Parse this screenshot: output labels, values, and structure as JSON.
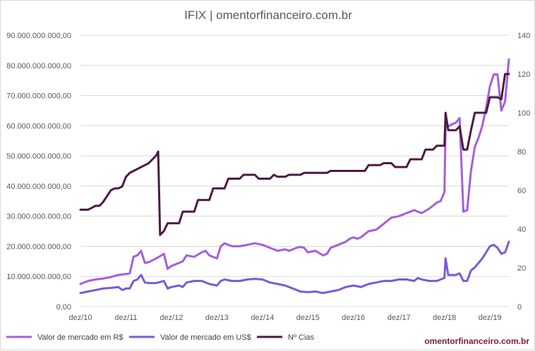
{
  "chart_data": {
    "type": "line",
    "title": "IFIX | omentorfinanceiro.com.br",
    "watermark": "omentorfinanceiro.com.br",
    "x_labels": [
      "dez/10",
      "dez/11",
      "dez/12",
      "dez/13",
      "dez/14",
      "dez/15",
      "dez/16",
      "dez/17",
      "dez/18",
      "dez/19"
    ],
    "y_left": {
      "min": 0,
      "max": 90000000000,
      "tick_labels": [
        "0,00",
        "10.000.000.000,00",
        "20.000.000.000,00",
        "30.000.000.000,00",
        "40.000.000.000,00",
        "50.000.000.000,00",
        "60.000.000.000,00",
        "70.000.000.000,00",
        "80.000.000.000,00",
        "90.000.000.000,00"
      ]
    },
    "y_right": {
      "min": 0,
      "max": 140,
      "tick_labels": [
        "0",
        "20",
        "40",
        "60",
        "80",
        "100",
        "120",
        "140"
      ]
    },
    "x_index": {
      "min": 0,
      "max": 113,
      "tick_interval": 12
    },
    "series": [
      {
        "name": "Valor de mercado em R$",
        "axis": "left",
        "color": "#a35fdb",
        "points": [
          [
            0,
            7.5
          ],
          [
            2,
            8.5
          ],
          [
            4,
            9.0
          ],
          [
            6,
            9.3
          ],
          [
            8,
            9.8
          ],
          [
            10,
            10.5
          ],
          [
            12,
            10.8
          ],
          [
            13,
            11.0
          ],
          [
            14,
            16.5
          ],
          [
            15,
            17.0
          ],
          [
            16,
            18.5
          ],
          [
            17,
            14.5
          ],
          [
            18,
            14.7
          ],
          [
            20,
            16.0
          ],
          [
            22,
            17.5
          ],
          [
            23,
            12.5
          ],
          [
            24,
            13.5
          ],
          [
            26,
            14.5
          ],
          [
            27,
            15.0
          ],
          [
            28,
            17.0
          ],
          [
            30,
            16.5
          ],
          [
            32,
            18.0
          ],
          [
            33,
            18.5
          ],
          [
            34,
            17.0
          ],
          [
            36,
            16.0
          ],
          [
            37,
            20.0
          ],
          [
            38,
            21.0
          ],
          [
            40,
            20.0
          ],
          [
            42,
            20.0
          ],
          [
            44,
            20.5
          ],
          [
            46,
            21.0
          ],
          [
            48,
            20.5
          ],
          [
            50,
            19.5
          ],
          [
            52,
            18.5
          ],
          [
            54,
            19.0
          ],
          [
            55,
            18.5
          ],
          [
            57,
            19.5
          ],
          [
            58,
            19.8
          ],
          [
            59,
            19.5
          ],
          [
            60,
            18.0
          ],
          [
            62,
            18.5
          ],
          [
            64,
            17.0
          ],
          [
            65,
            17.5
          ],
          [
            66,
            19.5
          ],
          [
            68,
            20.5
          ],
          [
            70,
            21.5
          ],
          [
            71,
            22.5
          ],
          [
            72,
            23.0
          ],
          [
            73,
            22.5
          ],
          [
            74,
            23.0
          ],
          [
            76,
            25.0
          ],
          [
            78,
            25.5
          ],
          [
            80,
            27.5
          ],
          [
            82,
            29.5
          ],
          [
            84,
            30.0
          ],
          [
            86,
            31.0
          ],
          [
            88,
            32.0
          ],
          [
            89,
            31.5
          ],
          [
            90,
            31.0
          ],
          [
            92,
            32.5
          ],
          [
            94,
            34.5
          ],
          [
            95,
            35.0
          ],
          [
            96,
            38.0
          ],
          [
            96.3,
            60.0
          ],
          [
            96.6,
            59.5
          ],
          [
            98,
            60.5
          ],
          [
            99,
            61.0
          ],
          [
            100,
            62.5
          ],
          [
            101,
            31.5
          ],
          [
            102,
            32.0
          ],
          [
            103,
            45.0
          ],
          [
            104,
            53.0
          ],
          [
            105,
            56.0
          ],
          [
            106,
            60.0
          ],
          [
            107,
            66.0
          ],
          [
            108,
            73.0
          ],
          [
            109,
            77.0
          ],
          [
            110,
            77.0
          ],
          [
            111,
            65.0
          ],
          [
            112,
            68.0
          ],
          [
            113,
            82.0
          ]
        ]
      },
      {
        "name": "Valor de mercado em US$",
        "axis": "left",
        "color": "#7b5ad6",
        "points": [
          [
            0,
            4.5
          ],
          [
            2,
            5.0
          ],
          [
            4,
            5.5
          ],
          [
            6,
            6.0
          ],
          [
            8,
            6.2
          ],
          [
            10,
            6.5
          ],
          [
            11,
            5.5
          ],
          [
            12,
            6.0
          ],
          [
            13,
            6.0
          ],
          [
            14,
            8.5
          ],
          [
            15,
            9.0
          ],
          [
            16,
            10.5
          ],
          [
            17,
            8.0
          ],
          [
            18,
            7.8
          ],
          [
            20,
            7.8
          ],
          [
            22,
            8.5
          ],
          [
            23,
            6.0
          ],
          [
            24,
            6.5
          ],
          [
            26,
            7.0
          ],
          [
            27,
            6.5
          ],
          [
            28,
            8.0
          ],
          [
            30,
            8.5
          ],
          [
            32,
            8.5
          ],
          [
            34,
            7.5
          ],
          [
            36,
            7.0
          ],
          [
            37,
            8.5
          ],
          [
            38,
            9.0
          ],
          [
            40,
            8.5
          ],
          [
            42,
            8.5
          ],
          [
            44,
            9.0
          ],
          [
            46,
            9.2
          ],
          [
            48,
            9.0
          ],
          [
            50,
            8.0
          ],
          [
            52,
            7.5
          ],
          [
            54,
            7.0
          ],
          [
            56,
            6.0
          ],
          [
            58,
            5.0
          ],
          [
            60,
            4.8
          ],
          [
            62,
            5.0
          ],
          [
            64,
            4.5
          ],
          [
            66,
            5.0
          ],
          [
            68,
            5.5
          ],
          [
            70,
            6.5
          ],
          [
            72,
            7.0
          ],
          [
            74,
            6.5
          ],
          [
            76,
            7.5
          ],
          [
            78,
            8.0
          ],
          [
            80,
            8.5
          ],
          [
            82,
            8.5
          ],
          [
            84,
            9.0
          ],
          [
            86,
            9.0
          ],
          [
            88,
            8.5
          ],
          [
            89,
            9.5
          ],
          [
            90,
            9.0
          ],
          [
            92,
            8.5
          ],
          [
            94,
            8.5
          ],
          [
            95,
            9.0
          ],
          [
            96,
            9.5
          ],
          [
            96.3,
            16.0
          ],
          [
            97,
            10.5
          ],
          [
            99,
            10.5
          ],
          [
            100,
            11.0
          ],
          [
            101,
            8.5
          ],
          [
            102,
            8.5
          ],
          [
            103,
            12.0
          ],
          [
            104,
            13.0
          ],
          [
            105,
            14.5
          ],
          [
            106,
            16.0
          ],
          [
            107,
            18.0
          ],
          [
            108,
            20.0
          ],
          [
            109,
            20.5
          ],
          [
            110,
            19.5
          ],
          [
            111,
            17.5
          ],
          [
            112,
            18.0
          ],
          [
            113,
            21.5
          ]
        ]
      },
      {
        "name": "Nº Cias",
        "axis": "right",
        "color": "#4d1a42",
        "points": [
          [
            0,
            50
          ],
          [
            2,
            50
          ],
          [
            3,
            51
          ],
          [
            4,
            52
          ],
          [
            5,
            52
          ],
          [
            6,
            54
          ],
          [
            7,
            57
          ],
          [
            8,
            60
          ],
          [
            9,
            61
          ],
          [
            10,
            61
          ],
          [
            11,
            62
          ],
          [
            12,
            67
          ],
          [
            13,
            69
          ],
          [
            14,
            70
          ],
          [
            15,
            71
          ],
          [
            16,
            72
          ],
          [
            17,
            73
          ],
          [
            18,
            74
          ],
          [
            19,
            76
          ],
          [
            20,
            78
          ],
          [
            20.5,
            80
          ],
          [
            21,
            37
          ],
          [
            22,
            39
          ],
          [
            23,
            43
          ],
          [
            24,
            43
          ],
          [
            25,
            43
          ],
          [
            26,
            43
          ],
          [
            27,
            49
          ],
          [
            28,
            49
          ],
          [
            29,
            49
          ],
          [
            30,
            49
          ],
          [
            31,
            55
          ],
          [
            32,
            55
          ],
          [
            33,
            55
          ],
          [
            34,
            55
          ],
          [
            35,
            61
          ],
          [
            36,
            61
          ],
          [
            37,
            61
          ],
          [
            38,
            61
          ],
          [
            39,
            66
          ],
          [
            40,
            66
          ],
          [
            41,
            66
          ],
          [
            42,
            66
          ],
          [
            43,
            68
          ],
          [
            44,
            68
          ],
          [
            45,
            68
          ],
          [
            46,
            68
          ],
          [
            47,
            66
          ],
          [
            48,
            66
          ],
          [
            49,
            66
          ],
          [
            50,
            66
          ],
          [
            51,
            68
          ],
          [
            52,
            67
          ],
          [
            53,
            67
          ],
          [
            54,
            67
          ],
          [
            55,
            68
          ],
          [
            56,
            68
          ],
          [
            57,
            68
          ],
          [
            58,
            68
          ],
          [
            59,
            69
          ],
          [
            60,
            69
          ],
          [
            61,
            69
          ],
          [
            62,
            69
          ],
          [
            63,
            69
          ],
          [
            64,
            69
          ],
          [
            65,
            69
          ],
          [
            66,
            70
          ],
          [
            67,
            70
          ],
          [
            68,
            70
          ],
          [
            69,
            70
          ],
          [
            70,
            70
          ],
          [
            71,
            70
          ],
          [
            72,
            70
          ],
          [
            73,
            70
          ],
          [
            74,
            70
          ],
          [
            75,
            70
          ],
          [
            76,
            73
          ],
          [
            77,
            73
          ],
          [
            78,
            73
          ],
          [
            79,
            73
          ],
          [
            80,
            74
          ],
          [
            81,
            74
          ],
          [
            82,
            74
          ],
          [
            83,
            72
          ],
          [
            84,
            72
          ],
          [
            85,
            72
          ],
          [
            86,
            72
          ],
          [
            87,
            76
          ],
          [
            88,
            76
          ],
          [
            89,
            76
          ],
          [
            90,
            76
          ],
          [
            91,
            81
          ],
          [
            92,
            81
          ],
          [
            93,
            81
          ],
          [
            94,
            83
          ],
          [
            95,
            83
          ],
          [
            96,
            83
          ],
          [
            96.3,
            100
          ],
          [
            97,
            91
          ],
          [
            98,
            91
          ],
          [
            99,
            91
          ],
          [
            100,
            93
          ],
          [
            101,
            81
          ],
          [
            102,
            81
          ],
          [
            103,
            91
          ],
          [
            104,
            100
          ],
          [
            105,
            100
          ],
          [
            106,
            100
          ],
          [
            107,
            100
          ],
          [
            108,
            108
          ],
          [
            109,
            108
          ],
          [
            110,
            108
          ],
          [
            111,
            107
          ],
          [
            112,
            120
          ],
          [
            113,
            120
          ]
        ]
      }
    ],
    "legend": [
      {
        "label": "Valor de mercado em R$",
        "color": "#a35fdb"
      },
      {
        "label": "Valor de mercado em US$",
        "color": "#7b5ad6"
      },
      {
        "label": "Nº Cias",
        "color": "#4d1a42"
      }
    ],
    "grid": true,
    "legend_position": "bottom-left"
  }
}
